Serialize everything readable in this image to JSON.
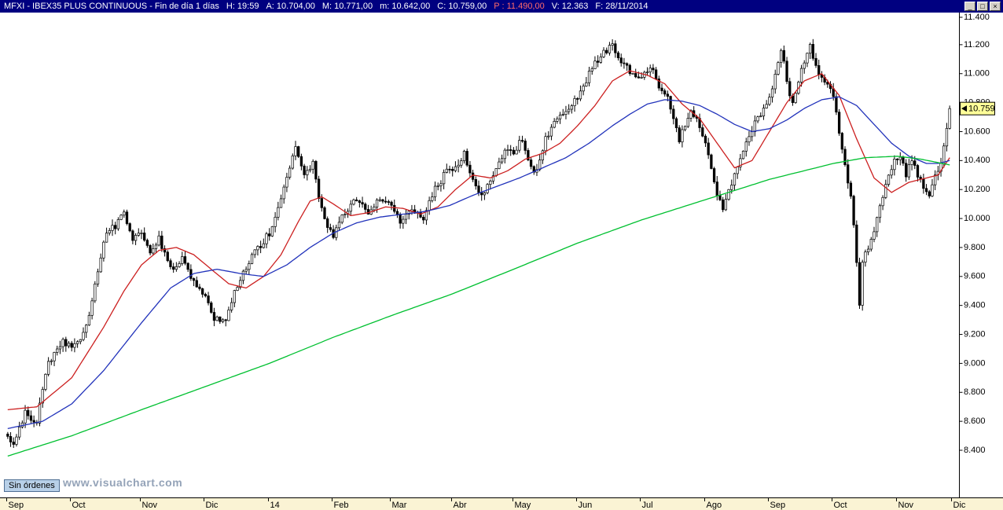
{
  "titlebar": {
    "segments": [
      "MFXI - IBEX35 PLUS CONTINUOUS - Fin de día 1 días",
      "H: 19:59",
      "A: 10.704,00",
      "M: 10.771,00",
      "m: 10.642,00",
      "C: 10.759,00",
      "P : 11.490,00",
      "V: 12.363",
      "F: 28/11/2014"
    ],
    "window_controls": {
      "minimize": "_",
      "maximize": "□",
      "close": "×"
    }
  },
  "status": {
    "orders_label": "Sin órdenes",
    "watermark": "www.visualchart.com"
  },
  "colors": {
    "titlebar_bg": "#000080",
    "titlebar_text": "#ffffff",
    "titlebar_alert": "#ff6a6a",
    "ma_fast": "#cc2020",
    "ma_medium": "#2233bb",
    "ma_slow": "#00c030",
    "candle": "#000000",
    "band_bg": "#faf3d4",
    "price_box_bg": "#ffff99",
    "watermark": "#94a3b8",
    "orders_bg": "#b8d0e8"
  },
  "chart_data": {
    "type": "candlestick",
    "title": "IBEX35 PLUS CONTINUOUS - Fin de día 1 días",
    "last_price": 10759,
    "last_price_label": "10.759",
    "y_axis": {
      "min": 8400,
      "max": 11400,
      "tick_step": 200,
      "ticks": [
        8400,
        8600,
        8800,
        9000,
        9200,
        9400,
        9600,
        9800,
        10000,
        10200,
        10400,
        10600,
        10800,
        11000,
        11200,
        11400
      ]
    },
    "x_axis": {
      "total_days": 325,
      "months": [
        {
          "label": "Sep",
          "day": 0
        },
        {
          "label": "Oct",
          "day": 22
        },
        {
          "label": "Nov",
          "day": 46
        },
        {
          "label": "Dic",
          "day": 68
        },
        {
          "label": "14",
          "day": 90
        },
        {
          "label": "Feb",
          "day": 112
        },
        {
          "label": "Mar",
          "day": 132
        },
        {
          "label": "Abr",
          "day": 153
        },
        {
          "label": "May",
          "day": 174
        },
        {
          "label": "Jun",
          "day": 196
        },
        {
          "label": "Jul",
          "day": 218
        },
        {
          "label": "Ago",
          "day": 240
        },
        {
          "label": "Sep",
          "day": 262
        },
        {
          "label": "Oct",
          "day": 284
        },
        {
          "label": "Nov",
          "day": 306
        },
        {
          "label": "Dic",
          "day": 325
        }
      ]
    },
    "candles": {
      "seed": 20141128,
      "close_jitter": 26,
      "wick_extra": 38,
      "close_anchors": [
        [
          0,
          8500
        ],
        [
          2,
          8430
        ],
        [
          6,
          8650
        ],
        [
          10,
          8600
        ],
        [
          14,
          9000
        ],
        [
          19,
          9150
        ],
        [
          22,
          9100
        ],
        [
          27,
          9250
        ],
        [
          33,
          9850
        ],
        [
          38,
          9980
        ],
        [
          40,
          10030
        ],
        [
          43,
          9850
        ],
        [
          46,
          9900
        ],
        [
          49,
          9750
        ],
        [
          52,
          9870
        ],
        [
          56,
          9650
        ],
        [
          60,
          9720
        ],
        [
          64,
          9550
        ],
        [
          68,
          9450
        ],
        [
          71,
          9300
        ],
        [
          75,
          9300
        ],
        [
          79,
          9550
        ],
        [
          83,
          9700
        ],
        [
          88,
          9850
        ],
        [
          90,
          9900
        ],
        [
          94,
          10120
        ],
        [
          99,
          10500
        ],
        [
          102,
          10300
        ],
        [
          105,
          10380
        ],
        [
          108,
          10050
        ],
        [
          112,
          9870
        ],
        [
          116,
          10050
        ],
        [
          120,
          10130
        ],
        [
          124,
          10050
        ],
        [
          128,
          10150
        ],
        [
          132,
          10100
        ],
        [
          135,
          9980
        ],
        [
          139,
          10050
        ],
        [
          143,
          10000
        ],
        [
          147,
          10200
        ],
        [
          151,
          10330
        ],
        [
          154,
          10340
        ],
        [
          157,
          10450
        ],
        [
          160,
          10280
        ],
        [
          163,
          10150
        ],
        [
          167,
          10300
        ],
        [
          171,
          10450
        ],
        [
          174,
          10460
        ],
        [
          177,
          10560
        ],
        [
          181,
          10300
        ],
        [
          185,
          10550
        ],
        [
          189,
          10700
        ],
        [
          193,
          10750
        ],
        [
          197,
          10870
        ],
        [
          201,
          11050
        ],
        [
          205,
          11150
        ],
        [
          208,
          11200
        ],
        [
          211,
          11100
        ],
        [
          214,
          11000
        ],
        [
          218,
          10960
        ],
        [
          221,
          11060
        ],
        [
          224,
          10900
        ],
        [
          227,
          10820
        ],
        [
          231,
          10550
        ],
        [
          235,
          10740
        ],
        [
          238,
          10650
        ],
        [
          240,
          10520
        ],
        [
          243,
          10250
        ],
        [
          246,
          10050
        ],
        [
          250,
          10300
        ],
        [
          254,
          10550
        ],
        [
          258,
          10700
        ],
        [
          262,
          10820
        ],
        [
          264,
          11000
        ],
        [
          266,
          11180
        ],
        [
          268,
          10950
        ],
        [
          270,
          10780
        ],
        [
          273,
          11020
        ],
        [
          276,
          11200
        ],
        [
          278,
          11050
        ],
        [
          281,
          10950
        ],
        [
          284,
          10850
        ],
        [
          286,
          10600
        ],
        [
          288,
          10350
        ],
        [
          290,
          10150
        ],
        [
          291,
          9950
        ],
        [
          293,
          9400
        ],
        [
          294,
          9700
        ],
        [
          296,
          9800
        ],
        [
          299,
          10000
        ],
        [
          302,
          10250
        ],
        [
          305,
          10400
        ],
        [
          307,
          10430
        ],
        [
          309,
          10300
        ],
        [
          311,
          10420
        ],
        [
          314,
          10250
        ],
        [
          317,
          10160
        ],
        [
          319,
          10300
        ],
        [
          321,
          10400
        ],
        [
          323,
          10600
        ],
        [
          324,
          10759
        ]
      ]
    },
    "moving_averages": [
      {
        "name": "ma-fast",
        "color_key": "ma_fast",
        "anchors": [
          [
            0,
            8680
          ],
          [
            10,
            8700
          ],
          [
            22,
            8900
          ],
          [
            33,
            9250
          ],
          [
            40,
            9500
          ],
          [
            46,
            9680
          ],
          [
            52,
            9780
          ],
          [
            58,
            9800
          ],
          [
            64,
            9750
          ],
          [
            70,
            9650
          ],
          [
            76,
            9550
          ],
          [
            82,
            9520
          ],
          [
            88,
            9600
          ],
          [
            94,
            9750
          ],
          [
            100,
            9980
          ],
          [
            104,
            10120
          ],
          [
            108,
            10150
          ],
          [
            112,
            10100
          ],
          [
            118,
            10020
          ],
          [
            124,
            10040
          ],
          [
            130,
            10080
          ],
          [
            136,
            10070
          ],
          [
            142,
            10030
          ],
          [
            148,
            10080
          ],
          [
            154,
            10200
          ],
          [
            160,
            10300
          ],
          [
            166,
            10280
          ],
          [
            172,
            10330
          ],
          [
            178,
            10410
          ],
          [
            184,
            10450
          ],
          [
            190,
            10520
          ],
          [
            196,
            10640
          ],
          [
            202,
            10780
          ],
          [
            208,
            10950
          ],
          [
            214,
            11020
          ],
          [
            220,
            10990
          ],
          [
            226,
            10930
          ],
          [
            232,
            10790
          ],
          [
            238,
            10690
          ],
          [
            244,
            10520
          ],
          [
            250,
            10350
          ],
          [
            256,
            10400
          ],
          [
            262,
            10600
          ],
          [
            268,
            10800
          ],
          [
            274,
            10950
          ],
          [
            280,
            11000
          ],
          [
            286,
            10850
          ],
          [
            292,
            10550
          ],
          [
            298,
            10280
          ],
          [
            304,
            10180
          ],
          [
            310,
            10250
          ],
          [
            316,
            10280
          ],
          [
            320,
            10300
          ],
          [
            324,
            10420
          ]
        ]
      },
      {
        "name": "ma-medium",
        "color_key": "ma_medium",
        "anchors": [
          [
            0,
            8550
          ],
          [
            12,
            8600
          ],
          [
            22,
            8720
          ],
          [
            33,
            8950
          ],
          [
            46,
            9280
          ],
          [
            56,
            9520
          ],
          [
            64,
            9620
          ],
          [
            72,
            9650
          ],
          [
            80,
            9620
          ],
          [
            88,
            9600
          ],
          [
            96,
            9680
          ],
          [
            104,
            9800
          ],
          [
            112,
            9900
          ],
          [
            120,
            9970
          ],
          [
            128,
            10010
          ],
          [
            136,
            10030
          ],
          [
            144,
            10050
          ],
          [
            152,
            10090
          ],
          [
            160,
            10160
          ],
          [
            168,
            10220
          ],
          [
            176,
            10280
          ],
          [
            184,
            10350
          ],
          [
            192,
            10420
          ],
          [
            200,
            10520
          ],
          [
            208,
            10640
          ],
          [
            214,
            10720
          ],
          [
            220,
            10790
          ],
          [
            226,
            10820
          ],
          [
            232,
            10810
          ],
          [
            238,
            10780
          ],
          [
            244,
            10720
          ],
          [
            250,
            10650
          ],
          [
            256,
            10600
          ],
          [
            262,
            10620
          ],
          [
            268,
            10680
          ],
          [
            274,
            10760
          ],
          [
            280,
            10820
          ],
          [
            286,
            10840
          ],
          [
            292,
            10780
          ],
          [
            298,
            10650
          ],
          [
            304,
            10520
          ],
          [
            310,
            10430
          ],
          [
            316,
            10380
          ],
          [
            320,
            10380
          ],
          [
            324,
            10400
          ]
        ]
      },
      {
        "name": "ma-slow",
        "color_key": "ma_slow",
        "anchors": [
          [
            0,
            8360
          ],
          [
            22,
            8500
          ],
          [
            46,
            8680
          ],
          [
            68,
            8840
          ],
          [
            90,
            9000
          ],
          [
            112,
            9180
          ],
          [
            132,
            9330
          ],
          [
            153,
            9480
          ],
          [
            174,
            9650
          ],
          [
            196,
            9830
          ],
          [
            218,
            9990
          ],
          [
            240,
            10130
          ],
          [
            262,
            10270
          ],
          [
            284,
            10380
          ],
          [
            295,
            10420
          ],
          [
            306,
            10430
          ],
          [
            314,
            10410
          ],
          [
            324,
            10370
          ]
        ]
      }
    ]
  }
}
